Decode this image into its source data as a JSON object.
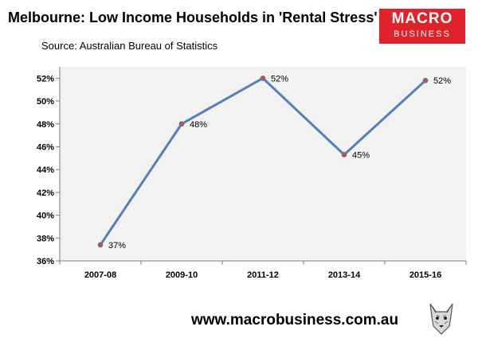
{
  "header": {
    "title": "Melbourne: Low Income Households in 'Rental Stress'",
    "source": "Source: Australian Bureau of Statistics"
  },
  "logo": {
    "line1": "MACRO",
    "line2": "BUSINESS"
  },
  "footer": {
    "url": "www.macrobusiness.com.au"
  },
  "colors": {
    "line": "#4f81bd",
    "marker": "#c0504d",
    "plot_bg": "#f2f2f2",
    "logo_bg": "#e0232b"
  },
  "icons": {
    "footer_logo": "wolf-icon"
  },
  "chart_data": {
    "type": "line",
    "categories": [
      "2007-08",
      "2009-10",
      "2011-12",
      "2013-14",
      "2015-16"
    ],
    "series": [
      {
        "values": [
          37.4,
          48.0,
          52.0,
          45.3,
          51.8
        ],
        "labels": [
          "37%",
          "48%",
          "52%",
          "45%",
          "52%"
        ]
      }
    ],
    "ylim": [
      36,
      53
    ],
    "yticks": [
      36,
      38,
      40,
      42,
      44,
      46,
      48,
      50,
      52
    ],
    "ytick_labels": [
      "36%",
      "38%",
      "40%",
      "42%",
      "44%",
      "46%",
      "48%",
      "50%",
      "52%"
    ],
    "grid": false,
    "legend": "none"
  }
}
